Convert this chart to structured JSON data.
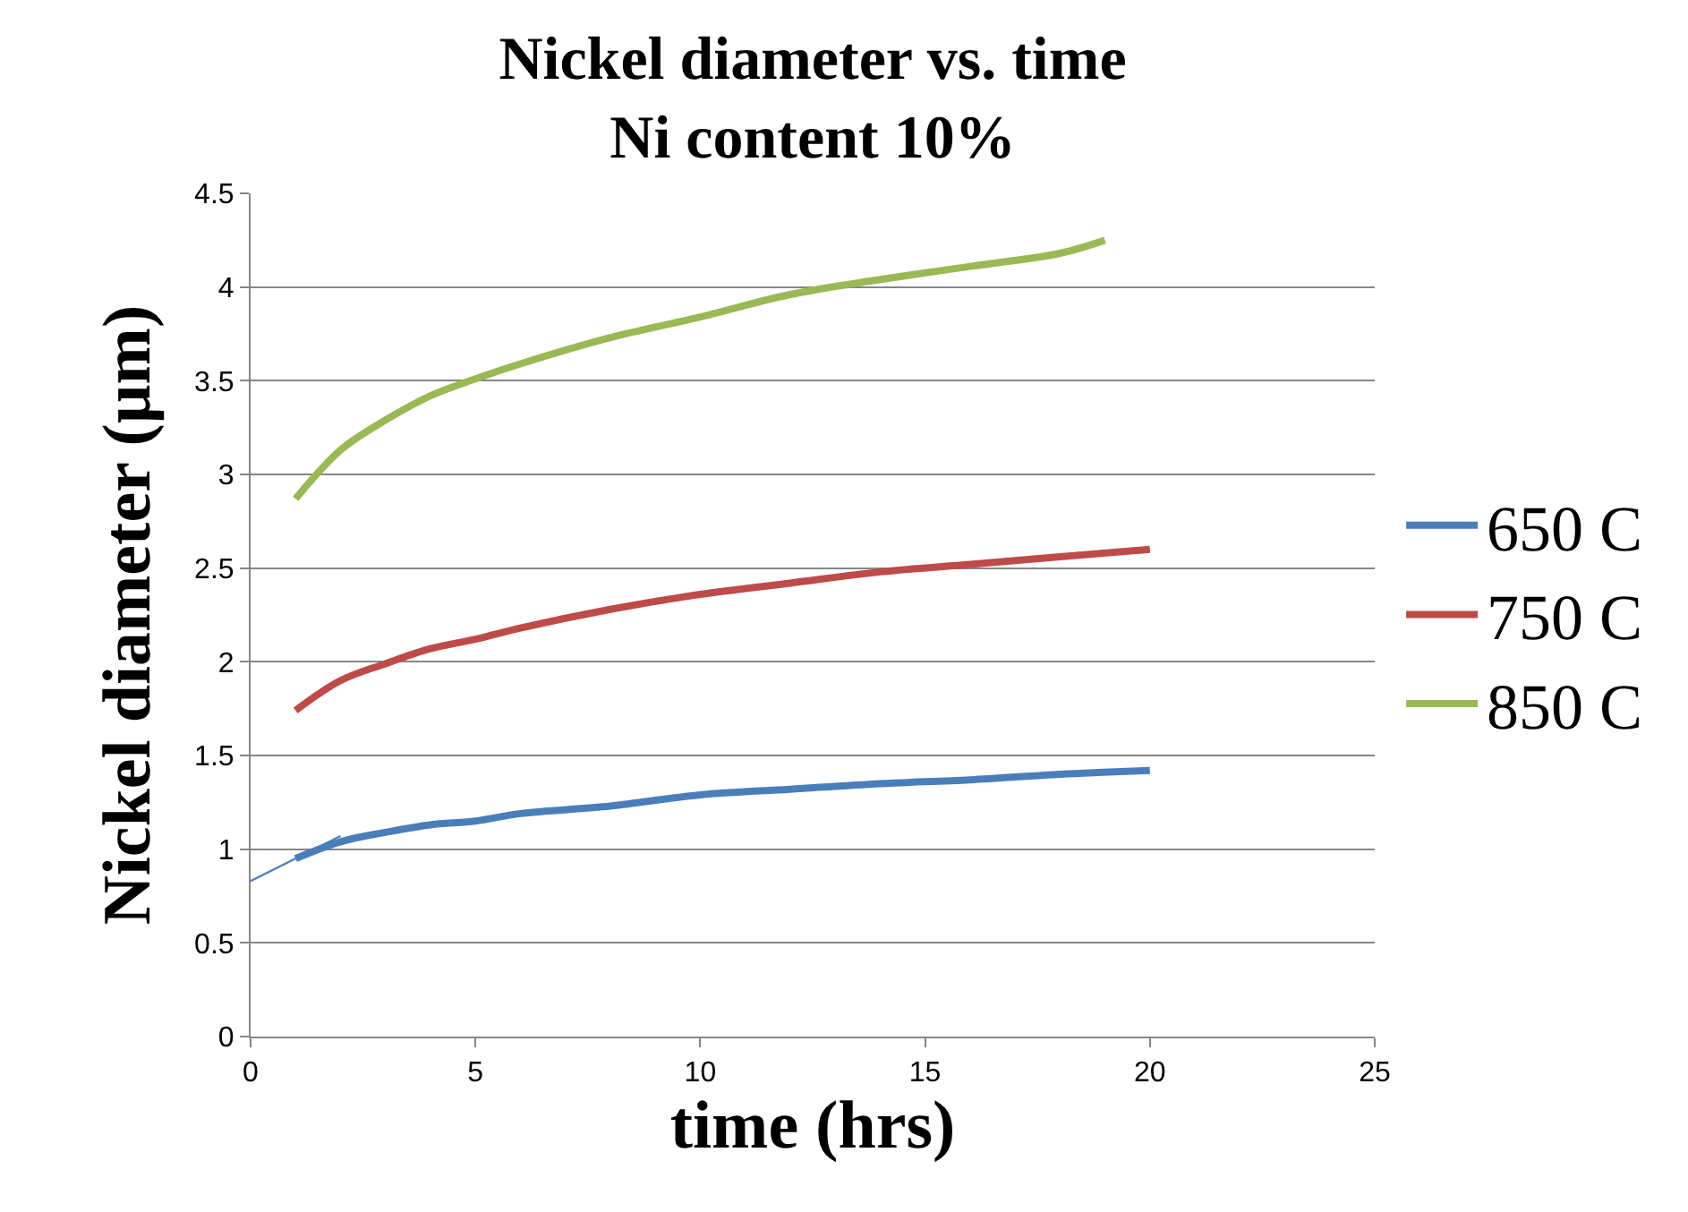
{
  "chart_data": {
    "type": "line",
    "title": "Nickel diameter vs. time\nNi content 10%",
    "xlabel": "time (hrs)",
    "ylabel": "Nickel diameter (µm)",
    "xlim": [
      0,
      25
    ],
    "xticks": [
      0,
      5,
      10,
      15,
      20,
      25
    ],
    "ylim": [
      0,
      4.5
    ],
    "yticks": [
      0,
      0.5,
      1,
      1.5,
      2,
      2.5,
      3,
      3.5,
      4,
      4.5
    ],
    "grid": "y",
    "legend": "right",
    "marker": "none",
    "line_style": "solid",
    "series": [
      {
        "name": "650 C",
        "color": "#4a7ebb",
        "x": [
          1,
          2,
          3,
          4,
          5,
          6,
          8,
          10,
          12,
          14,
          16,
          18,
          20
        ],
        "values": [
          0.95,
          1.04,
          1.09,
          1.13,
          1.15,
          1.19,
          1.23,
          1.29,
          1.32,
          1.35,
          1.37,
          1.4,
          1.42
        ]
      },
      {
        "name": "750 C",
        "color": "#be4b48",
        "x": [
          1,
          2,
          3,
          4,
          5,
          6,
          8,
          10,
          12,
          14,
          16,
          18,
          20
        ],
        "values": [
          1.74,
          1.9,
          1.99,
          2.07,
          2.12,
          2.18,
          2.28,
          2.36,
          2.42,
          2.48,
          2.52,
          2.56,
          2.6
        ]
      },
      {
        "name": "850 C",
        "color": "#98b954",
        "x": [
          1,
          2,
          3,
          4,
          5,
          6,
          8,
          10,
          12,
          14,
          16,
          18,
          19
        ],
        "values": [
          2.87,
          3.13,
          3.29,
          3.42,
          3.51,
          3.59,
          3.73,
          3.84,
          3.96,
          4.04,
          4.11,
          4.18,
          4.25
        ]
      },
      {
        "type": "line",
        "color": "#4a7ebb",
        "x": [
          0,
          2
        ],
        "values": [
          0.83,
          1.07
        ]
      }
    ]
  }
}
